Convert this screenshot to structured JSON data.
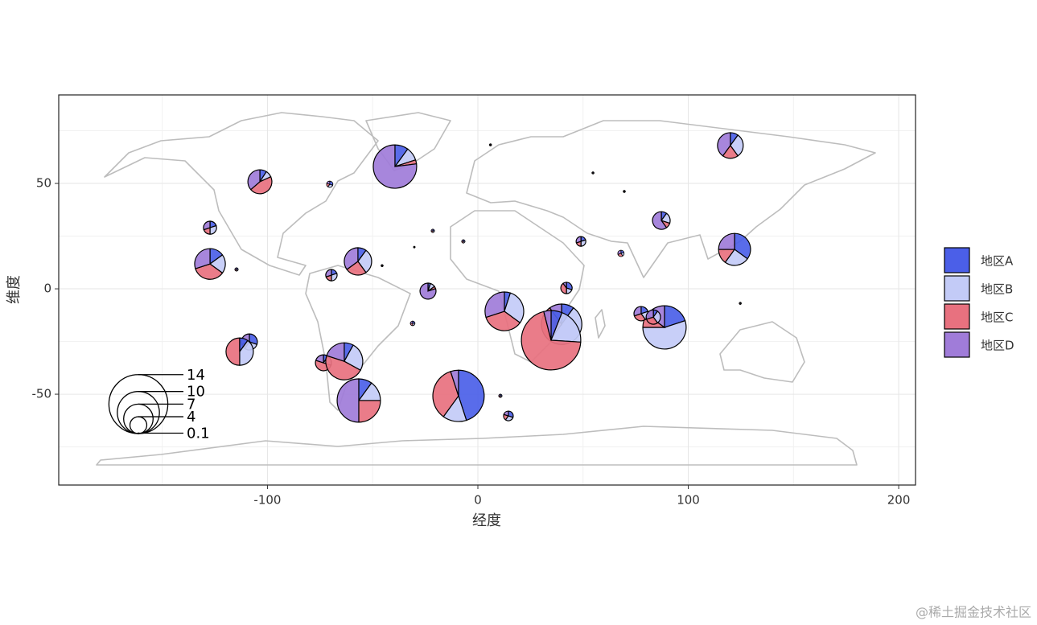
{
  "chart_data": {
    "type": "scatterpie",
    "x_label": "经度",
    "y_label": "维度",
    "xlim": [
      -199.2,
      208
    ],
    "ylim": [
      -93.1,
      92
    ],
    "xticks": [
      -100,
      0,
      100,
      200
    ],
    "yticks": [
      -50,
      0,
      50
    ],
    "grid": true,
    "legend": "right",
    "series": [
      {
        "name": "地区A",
        "color": "#4b5fe8"
      },
      {
        "name": "地区B",
        "color": "#c3cbf7"
      },
      {
        "name": "地区C",
        "color": "#e8717f"
      },
      {
        "name": "地区D",
        "color": "#a07cd9"
      }
    ],
    "size_legend": [
      14,
      10,
      7,
      4,
      0.1
    ],
    "pies": [
      {
        "x": -103.6,
        "y": 50.8,
        "radius": 5.7,
        "values": [
          1,
          1,
          5,
          4
        ]
      },
      {
        "x": -39.4,
        "y": 58,
        "radius": 10.3,
        "values": [
          10,
          10,
          3,
          77
        ]
      },
      {
        "x": -127.3,
        "y": 29,
        "radius": 3.1,
        "values": [
          2,
          3,
          2,
          3
        ]
      },
      {
        "x": -127.3,
        "y": 11.8,
        "radius": 7.3,
        "values": [
          15,
          20,
          35,
          30
        ]
      },
      {
        "x": -70.4,
        "y": 49.6,
        "radius": 1.5,
        "values": [
          3,
          3,
          2,
          2
        ]
      },
      {
        "x": -57,
        "y": 13,
        "radius": 6.5,
        "values": [
          10,
          30,
          25,
          35
        ]
      },
      {
        "x": -69.6,
        "y": 6.5,
        "radius": 2.7,
        "values": [
          2,
          3,
          2,
          3
        ]
      },
      {
        "x": -114.7,
        "y": 9.2,
        "radius": 0.8,
        "values": [
          1,
          1,
          1,
          1
        ]
      },
      {
        "x": -23.7,
        "y": -1.1,
        "radius": 3.8,
        "values": [
          5,
          10,
          5,
          80
        ]
      },
      {
        "x": -31,
        "y": -16.4,
        "radius": 1.1,
        "values": [
          1,
          1,
          1,
          1
        ]
      },
      {
        "x": -108.6,
        "y": -25.2,
        "radius": 3.8,
        "values": [
          30,
          30,
          10,
          30
        ]
      },
      {
        "x": -113.2,
        "y": -29.8,
        "radius": 6.5,
        "values": [
          10,
          40,
          50,
          0
        ]
      },
      {
        "x": -73.4,
        "y": -35.1,
        "radius": 3.8,
        "values": [
          10,
          20,
          50,
          20
        ]
      },
      {
        "x": -63.5,
        "y": -34.4,
        "radius": 8.8,
        "values": [
          8,
          25,
          47,
          20
        ]
      },
      {
        "x": -56.6,
        "y": -53,
        "radius": 10.3,
        "values": [
          10,
          15,
          25,
          50
        ]
      },
      {
        "x": -9.2,
        "y": -50.8,
        "radius": 12.2,
        "values": [
          45,
          15,
          35,
          5
        ]
      },
      {
        "x": 12.6,
        "y": -10.7,
        "radius": 9.2,
        "values": [
          5,
          30,
          35,
          30
        ]
      },
      {
        "x": 39.8,
        "y": -16.8,
        "radius": 9.6,
        "values": [
          10,
          50,
          30,
          10
        ]
      },
      {
        "x": 34.8,
        "y": -24.4,
        "radius": 14.1,
        "values": [
          6,
          20,
          70,
          4
        ]
      },
      {
        "x": 14.5,
        "y": -60.3,
        "radius": 2.3,
        "values": [
          3,
          3,
          2,
          2
        ]
      },
      {
        "x": 42.1,
        "y": 0.4,
        "radius": 2.7,
        "values": [
          3,
          2,
          4,
          1
        ]
      },
      {
        "x": 49,
        "y": 22.5,
        "radius": 2.3,
        "values": [
          2,
          3,
          2,
          3
        ]
      },
      {
        "x": 68,
        "y": 16.8,
        "radius": 1.5,
        "values": [
          2,
          2,
          3,
          3
        ]
      },
      {
        "x": 87.2,
        "y": 32.4,
        "radius": 4.2,
        "values": [
          10,
          20,
          10,
          60
        ]
      },
      {
        "x": 120,
        "y": 68,
        "radius": 6.1,
        "values": [
          10,
          30,
          20,
          40
        ]
      },
      {
        "x": 122,
        "y": 18.7,
        "radius": 7.6,
        "values": [
          35,
          25,
          15,
          25
        ]
      },
      {
        "x": 88.7,
        "y": -18.3,
        "radius": 10.3,
        "values": [
          20,
          55,
          10,
          15
        ]
      },
      {
        "x": 77.6,
        "y": -11.8,
        "radius": 3.4,
        "values": [
          20,
          20,
          30,
          30
        ]
      },
      {
        "x": 83.4,
        "y": -13.4,
        "radius": 3.4,
        "values": [
          10,
          30,
          30,
          30
        ]
      },
      {
        "x": 6,
        "y": 68.3,
        "radius": 0.5,
        "values": [
          1,
          1,
          1,
          1
        ]
      },
      {
        "x": 54.7,
        "y": 55,
        "radius": 0.5,
        "values": [
          1,
          1,
          1,
          1
        ]
      },
      {
        "x": 69.6,
        "y": 46.2,
        "radius": 0.5,
        "values": [
          1,
          1,
          1,
          1
        ]
      },
      {
        "x": -21.4,
        "y": 27.5,
        "radius": 0.8,
        "values": [
          1,
          1,
          1,
          1
        ]
      },
      {
        "x": -6.9,
        "y": 22.5,
        "radius": 0.8,
        "values": [
          1,
          1,
          1,
          1
        ]
      },
      {
        "x": -45.5,
        "y": 11,
        "radius": 0.5,
        "values": [
          1,
          1,
          1,
          1
        ]
      },
      {
        "x": 10.7,
        "y": -50.8,
        "radius": 0.8,
        "values": [
          1,
          1,
          1,
          1
        ]
      },
      {
        "x": 124.7,
        "y": -6.9,
        "radius": 0.5,
        "values": [
          1,
          1,
          1,
          1
        ]
      },
      {
        "x": -30.2,
        "y": 19.8,
        "radius": 0.4,
        "values": [
          1,
          1,
          1,
          1
        ]
      }
    ],
    "watermark": "@稀土掘金技术社区"
  }
}
